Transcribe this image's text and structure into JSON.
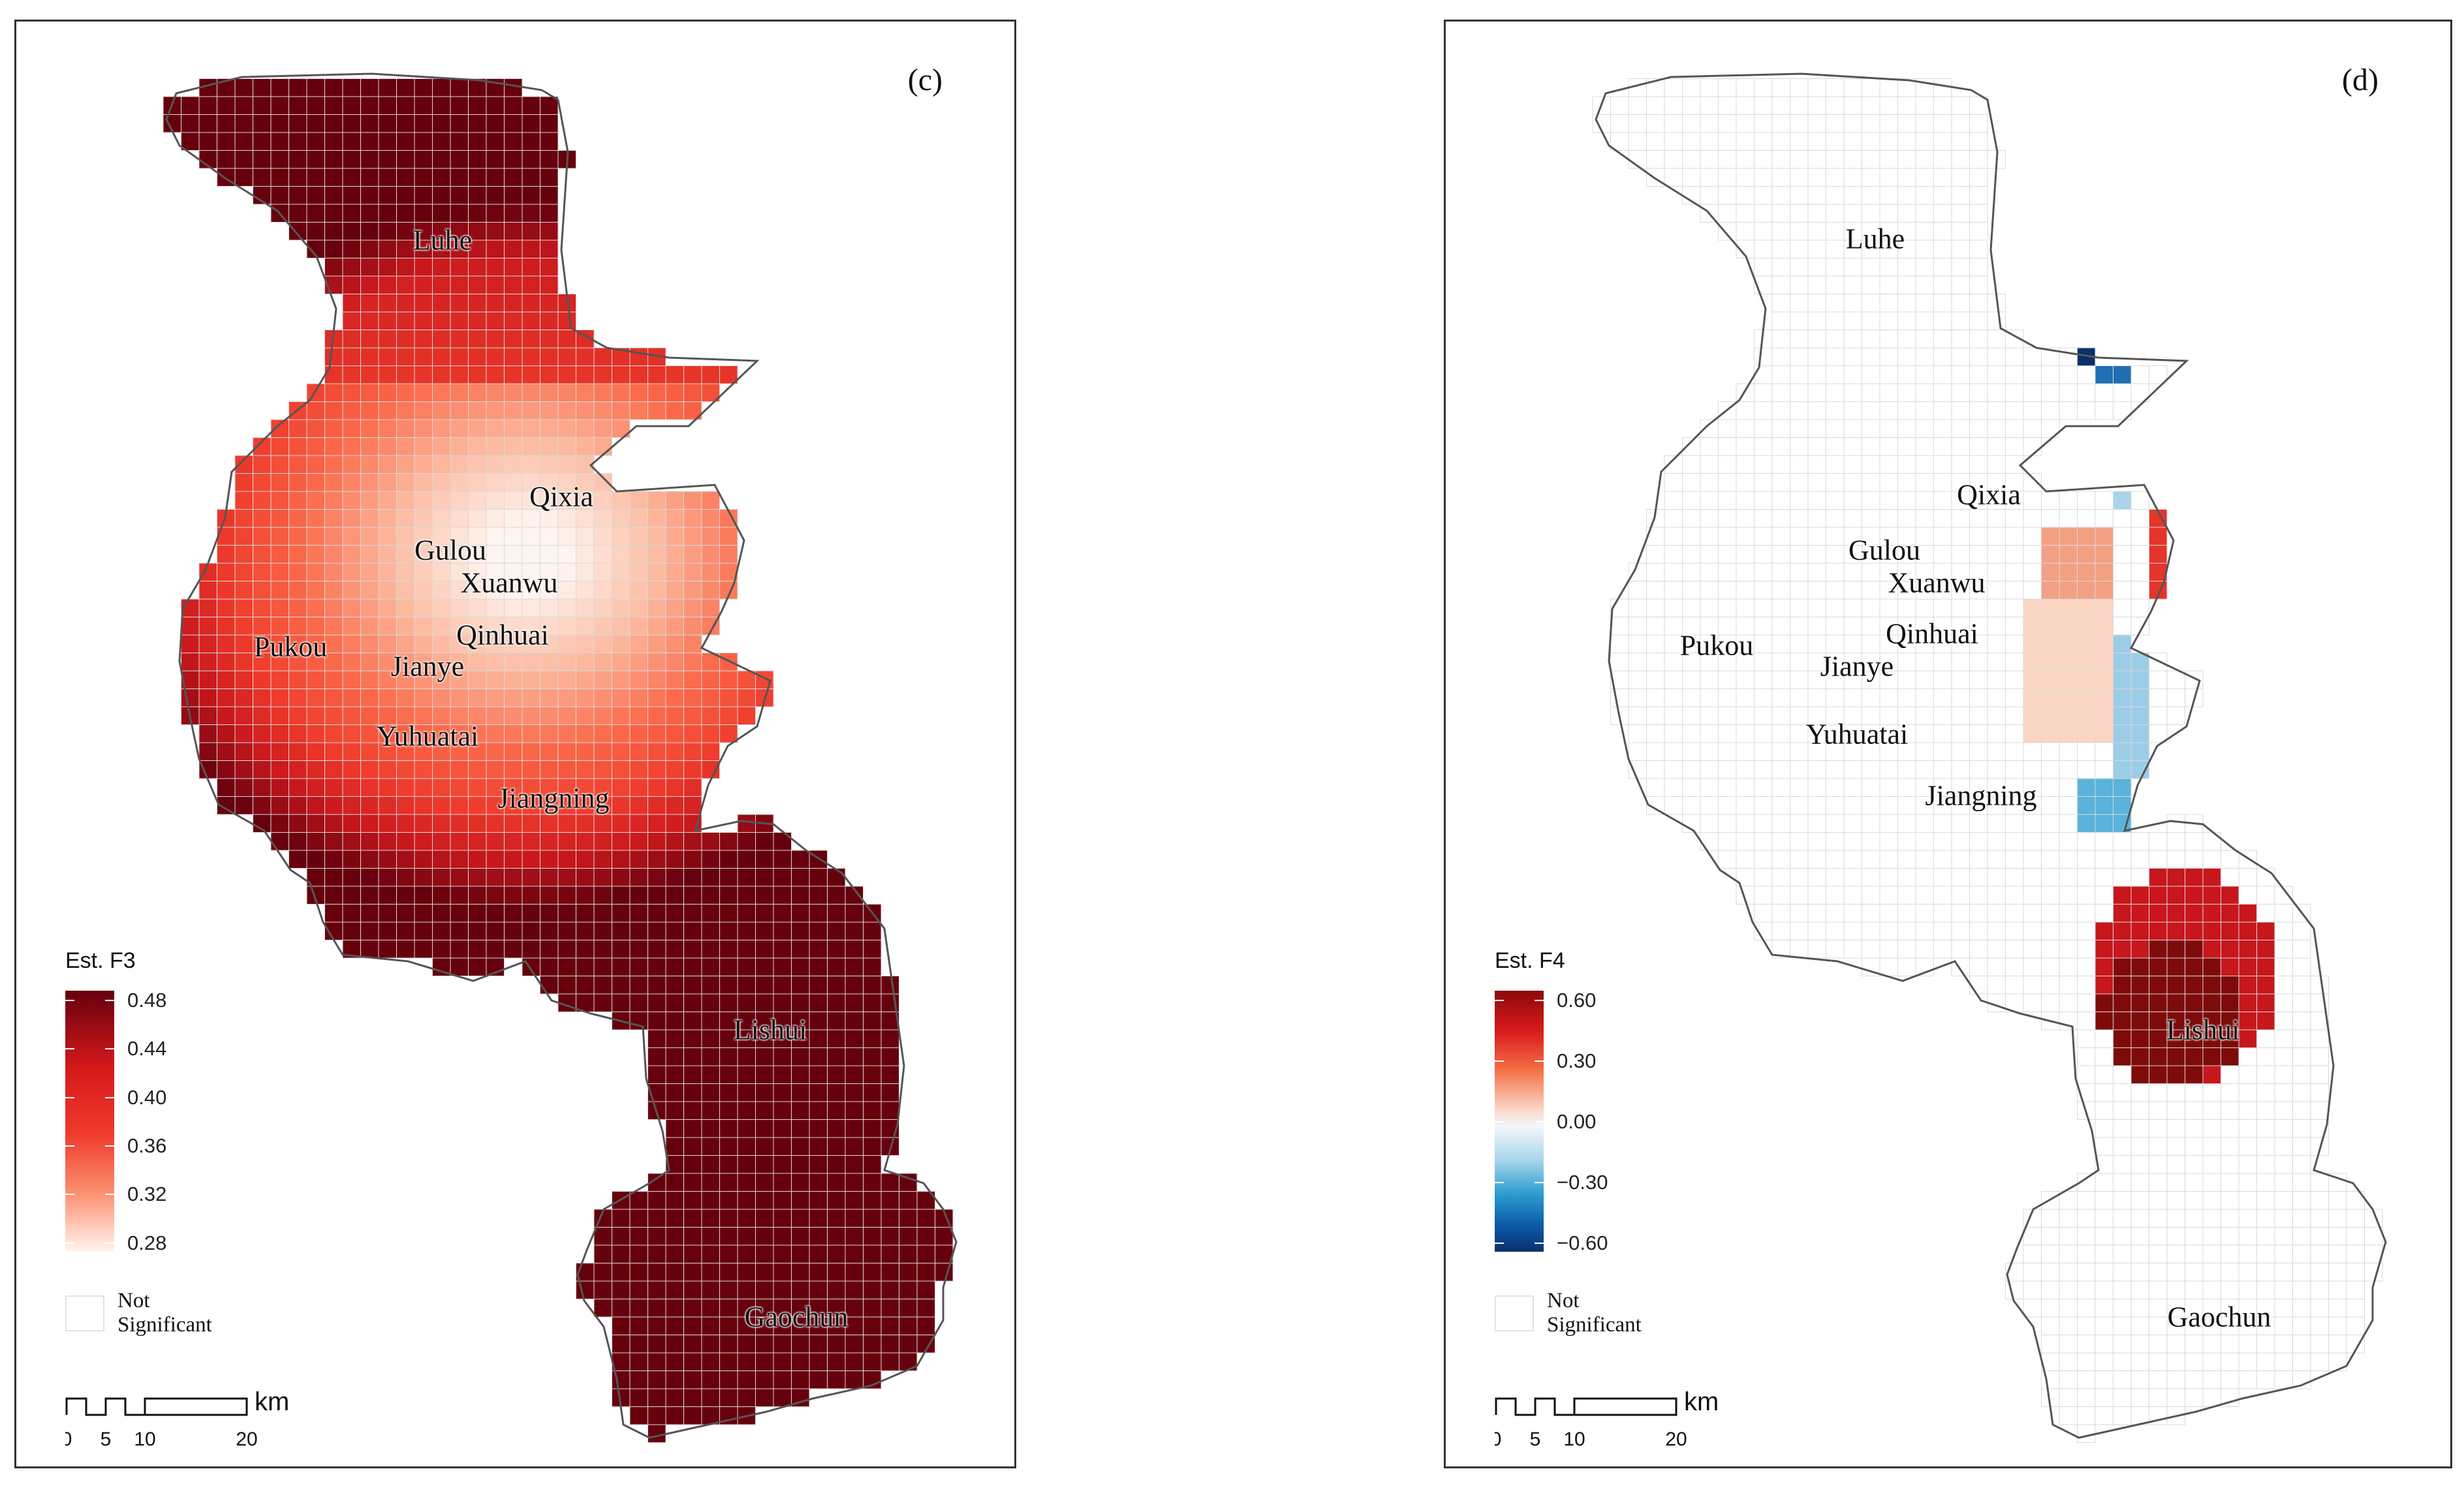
{
  "panels": {
    "c": {
      "tag": "(c)",
      "legend_title": "Est. F3",
      "legend_ticks": [
        "0.48",
        "0.44",
        "0.40",
        "0.36",
        "0.32",
        "0.28"
      ],
      "legend_colors": {
        "high": "#67000d",
        "mid": "#ef3b2c",
        "low": "#fff5f0"
      },
      "not_significant_label": "Not Significant",
      "districts": {
        "luhe": "Luhe",
        "qixia": "Qixia",
        "gulou": "Gulou",
        "xuanwu": "Xuanwu",
        "qinhuai": "Qinhuai",
        "pukou": "Pukou",
        "jianye": "Jianye",
        "yuhuatai": "Yuhuatai",
        "jiangning": "Jiangning",
        "lishui": "Lishui",
        "gaochun": "Gaochun"
      },
      "scalebar": {
        "unit": "km",
        "ticks": [
          "0",
          "5",
          "10",
          "20"
        ]
      }
    },
    "d": {
      "tag": "(d)",
      "legend_title": "Est. F4",
      "legend_ticks": [
        "0.60",
        "0.30",
        "0.00",
        "−0.30",
        "−0.60"
      ],
      "legend_colors": {
        "high": "#8b0a0a",
        "mid_high": "#f6896e",
        "zero": "#f7f7f7",
        "mid_low": "#4fb3d9",
        "low": "#08306b"
      },
      "not_significant_label": "Not Significant",
      "districts": {
        "luhe": "Luhe",
        "qixia": "Qixia",
        "gulou": "Gulou",
        "xuanwu": "Xuanwu",
        "qinhuai": "Qinhuai",
        "pukou": "Pukou",
        "jianye": "Jianye",
        "yuhuatai": "Yuhuatai",
        "jiangning": "Jiangning",
        "lishui": "Lishui",
        "gaochun": "Gaochun"
      },
      "scalebar": {
        "unit": "km",
        "ticks": [
          "0",
          "5",
          "10",
          "20"
        ]
      }
    }
  }
}
